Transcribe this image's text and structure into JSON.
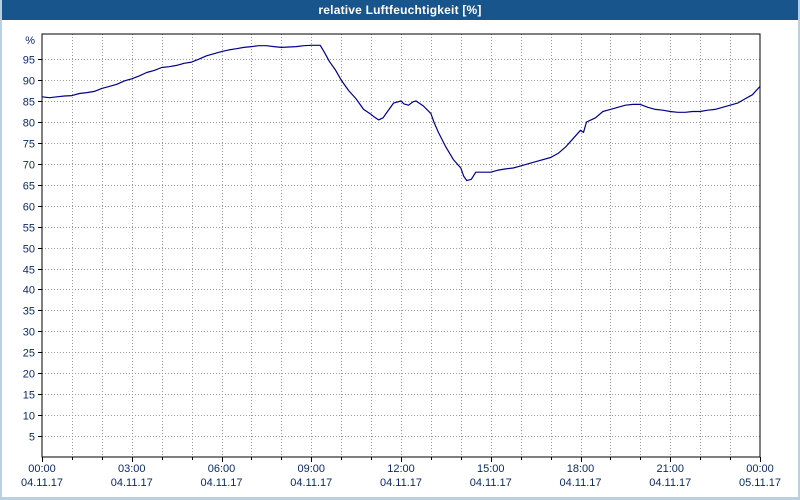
{
  "window": {
    "title": "relative Luftfeuchtigkeit [%]"
  },
  "colors": {
    "titlebar": "#17558c",
    "title_text": "#ffffff",
    "axis": "#000000",
    "grid": "#9a9a9a",
    "labels": "#0d2a66",
    "line": "#00008b",
    "background": "#ffffff",
    "border": "#b9cfe2"
  },
  "chart_data": {
    "type": "line",
    "title": "relative Luftfeuchtigkeit [%]",
    "xlabel": "",
    "ylabel": "%",
    "ylim": [
      0,
      101
    ],
    "xlim": [
      0,
      24
    ],
    "grid": true,
    "legend_position": "none",
    "yticks": [
      5,
      10,
      15,
      20,
      25,
      30,
      35,
      40,
      45,
      50,
      55,
      60,
      65,
      70,
      75,
      80,
      85,
      90,
      95
    ],
    "x_minor_tick_every_hours": 1,
    "x_major_ticks_hours": [
      0,
      3,
      6,
      9,
      12,
      15,
      18,
      21,
      24
    ],
    "x_tick_labels": [
      {
        "time": "00:00",
        "date": "04.11.17"
      },
      {
        "time": "03:00",
        "date": "04.11.17"
      },
      {
        "time": "06:00",
        "date": "04.11.17"
      },
      {
        "time": "09:00",
        "date": "04.11.17"
      },
      {
        "time": "12:00",
        "date": "04.11.17"
      },
      {
        "time": "15:00",
        "date": "04.11.17"
      },
      {
        "time": "18:00",
        "date": "04.11.17"
      },
      {
        "time": "21:00",
        "date": "04.11.17"
      },
      {
        "time": "00:00",
        "date": "05.11.17"
      }
    ],
    "series": [
      {
        "name": "relative Luftfeuchtigkeit [%]",
        "color": "#00008b",
        "points": [
          [
            0,
            86
          ],
          [
            0.25,
            85.8
          ],
          [
            0.5,
            86
          ],
          [
            0.75,
            86.2
          ],
          [
            1,
            86.3
          ],
          [
            1.25,
            86.8
          ],
          [
            1.5,
            87
          ],
          [
            1.75,
            87.3
          ],
          [
            2,
            88
          ],
          [
            2.25,
            88.5
          ],
          [
            2.5,
            89
          ],
          [
            2.75,
            89.8
          ],
          [
            3,
            90.3
          ],
          [
            3.25,
            91
          ],
          [
            3.5,
            91.8
          ],
          [
            3.75,
            92.3
          ],
          [
            4,
            93
          ],
          [
            4.25,
            93.2
          ],
          [
            4.5,
            93.5
          ],
          [
            4.75,
            94
          ],
          [
            5,
            94.3
          ],
          [
            5.25,
            95
          ],
          [
            5.5,
            95.8
          ],
          [
            5.75,
            96.3
          ],
          [
            6,
            96.8
          ],
          [
            6.25,
            97.2
          ],
          [
            6.5,
            97.5
          ],
          [
            6.75,
            97.8
          ],
          [
            7,
            98
          ],
          [
            7.25,
            98.2
          ],
          [
            7.5,
            98.2
          ],
          [
            7.75,
            98
          ],
          [
            8,
            97.8
          ],
          [
            8.25,
            97.9
          ],
          [
            8.5,
            98
          ],
          [
            8.75,
            98.2
          ],
          [
            9,
            98.3
          ],
          [
            9.3,
            98.3
          ],
          [
            9.45,
            96.5
          ],
          [
            9.6,
            94.5
          ],
          [
            9.8,
            92.5
          ],
          [
            10,
            90
          ],
          [
            10.25,
            87.5
          ],
          [
            10.5,
            85.5
          ],
          [
            10.75,
            83
          ],
          [
            11,
            81.8
          ],
          [
            11.1,
            81.2
          ],
          [
            11.25,
            80.5
          ],
          [
            11.4,
            81
          ],
          [
            11.5,
            82
          ],
          [
            11.75,
            84.5
          ],
          [
            12,
            85
          ],
          [
            12.1,
            84.3
          ],
          [
            12.25,
            84
          ],
          [
            12.4,
            84.8
          ],
          [
            12.5,
            85
          ],
          [
            12.75,
            83.8
          ],
          [
            13,
            82
          ],
          [
            13.1,
            80
          ],
          [
            13.25,
            77.5
          ],
          [
            13.5,
            74
          ],
          [
            13.75,
            71
          ],
          [
            14,
            69
          ],
          [
            14.1,
            67
          ],
          [
            14.2,
            66
          ],
          [
            14.35,
            66.3
          ],
          [
            14.5,
            68
          ],
          [
            14.75,
            68
          ],
          [
            15,
            68
          ],
          [
            15.25,
            68.5
          ],
          [
            15.5,
            68.8
          ],
          [
            15.75,
            69
          ],
          [
            16,
            69.5
          ],
          [
            16.25,
            70
          ],
          [
            16.5,
            70.5
          ],
          [
            17,
            71.5
          ],
          [
            17.25,
            72.5
          ],
          [
            17.5,
            74
          ],
          [
            17.75,
            76
          ],
          [
            18,
            78
          ],
          [
            18.1,
            77.5
          ],
          [
            18.2,
            80
          ],
          [
            18.35,
            80.5
          ],
          [
            18.5,
            81
          ],
          [
            18.75,
            82.5
          ],
          [
            19,
            83
          ],
          [
            19.25,
            83.5
          ],
          [
            19.5,
            84
          ],
          [
            19.75,
            84.2
          ],
          [
            20,
            84.2
          ],
          [
            20.25,
            83.5
          ],
          [
            20.5,
            83
          ],
          [
            20.75,
            82.8
          ],
          [
            21,
            82.5
          ],
          [
            21.25,
            82.3
          ],
          [
            21.5,
            82.3
          ],
          [
            21.75,
            82.5
          ],
          [
            22,
            82.5
          ],
          [
            22.25,
            82.8
          ],
          [
            22.5,
            83
          ],
          [
            22.75,
            83.5
          ],
          [
            23,
            84
          ],
          [
            23.25,
            84.5
          ],
          [
            23.5,
            85.5
          ],
          [
            23.75,
            86.5
          ],
          [
            24,
            88.5
          ]
        ]
      }
    ]
  }
}
